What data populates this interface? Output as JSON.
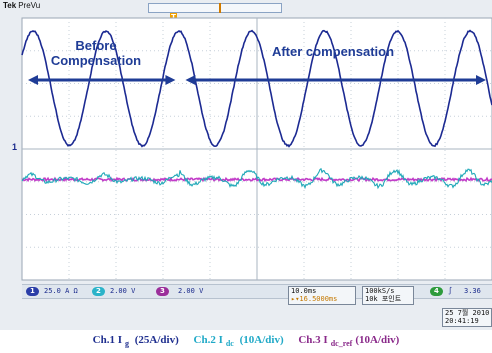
{
  "scope": {
    "brand": "Tek",
    "mode": "PreVu",
    "trigger_tag": "T",
    "ch1_marker": "1"
  },
  "annotations": {
    "before": [
      "Before",
      "Compensation"
    ],
    "after": "After compensation"
  },
  "status": {
    "ch1": {
      "num": "1",
      "scale": "25.0 A",
      "unit_symbol": "Ω",
      "color": "#2b3ea8"
    },
    "ch2": {
      "num": "2",
      "scale": "2.00 V",
      "color": "#2bb3c9"
    },
    "ch3": {
      "num": "3",
      "scale": "2.00 V",
      "color": "#9b2f9b"
    },
    "timebase": "10.0ms",
    "timebase_sub": "▸▾16.5000ms",
    "sample_rate": "100kS/s",
    "record": "10k 포인트",
    "trig_ch": "4",
    "trig_level": "3.36",
    "date": "25 7월 2010",
    "time": "20:41:19"
  },
  "caption": {
    "c1_pre": "Ch.1 I",
    "c1_sub": "g",
    "c1_post": " (25A/div)",
    "c2_pre": "Ch.2 I",
    "c2_sub": "dc",
    "c2_post": " (10A/div)",
    "c3_pre": "Ch.3 I",
    "c3_sub": "dc_ref",
    "c3_post": "(10A/div)"
  },
  "colors": {
    "ch1_trace": "#1c2a92",
    "ch2_trace": "#1fa8b8",
    "ch3_trace": "#c23cc8",
    "arrow": "#1f3c96",
    "grid": "#c7d0da",
    "screen_bg": "#ffffff"
  },
  "chart_data": {
    "type": "line",
    "x_unit": "ms",
    "x_div": 10.0,
    "divisions_x": 10,
    "divisions_y": 8,
    "compensation_switch_div": 3.35,
    "series": [
      {
        "name": "Ch.1",
        "unit": "A",
        "scale_per_div": 25,
        "offset_div": 1.85,
        "amplitude_div": 1.75,
        "period_div": 1.55,
        "phase_deg": 35
      },
      {
        "name": "Ch.2",
        "unit": "A",
        "scale_per_div": 10,
        "offset_div": -0.93,
        "amplitude_div_before": 0.15,
        "amplitude_div_after": 0.28
      },
      {
        "name": "Ch.3",
        "unit": "A",
        "scale_per_div": 10,
        "offset_div": -0.93,
        "amplitude_div": 0.04
      }
    ]
  }
}
